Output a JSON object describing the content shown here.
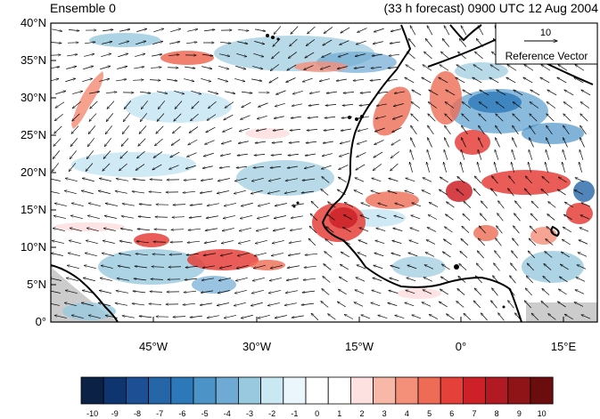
{
  "header": {
    "left_title": "Ensemble 0",
    "right_title": "(33 h forecast) 0900 UTC 12 Aug 2004"
  },
  "map": {
    "lat_labels": [
      "40°N",
      "35°N",
      "30°N",
      "25°N",
      "20°N",
      "15°N",
      "10°N",
      "5°N",
      "0°"
    ],
    "lon_labels": [
      "45°W",
      "30°W",
      "15°W",
      "0°",
      "15°E"
    ],
    "reference_vector": {
      "magnitude": "10",
      "label": "Reference Vector"
    }
  },
  "colorbar": {
    "labels": [
      "-10",
      "-9",
      "-8",
      "-7",
      "-6",
      "-5",
      "-4",
      "-3",
      "-2",
      "-1",
      "0",
      "1",
      "2",
      "3",
      "4",
      "5",
      "6",
      "7",
      "8",
      "9",
      "10"
    ],
    "colors": [
      "#0b2145",
      "#0e3570",
      "#1d4f94",
      "#2566a8",
      "#2c78b8",
      "#4c93c7",
      "#6eaad3",
      "#98c9de",
      "#cae8f3",
      "#eaf6fb",
      "#ffffff",
      "#ffffff",
      "#fde0e0",
      "#f8b8a8",
      "#f48f7a",
      "#ee6b55",
      "#e5403a",
      "#cd2127",
      "#b11a22",
      "#8e1418",
      "#6b0d0f"
    ]
  }
}
